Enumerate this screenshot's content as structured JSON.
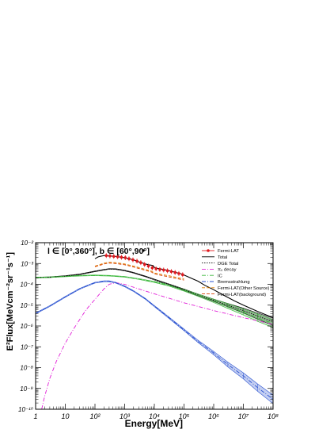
{
  "chart_data": {
    "type": "line",
    "title": "",
    "region_label": "l ∈ [0°,360°], b ∈ [60°,90°]",
    "xlabel": "Energy[MeV]",
    "ylabel": "E²Flux[MeVcm⁻²sr⁻¹s⁻¹]",
    "x_scale": "log",
    "y_scale": "log",
    "xlim": [
      1,
      100000000
    ],
    "ylim": [
      1e-10,
      0.01
    ],
    "x_ticks": [
      {
        "value": 1,
        "label": "1"
      },
      {
        "value": 10,
        "label": "10"
      },
      {
        "value": 100,
        "label": "10²"
      },
      {
        "value": 1000,
        "label": "10³"
      },
      {
        "value": 10000,
        "label": "10⁴"
      },
      {
        "value": 100000,
        "label": "10⁵"
      },
      {
        "value": 1000000,
        "label": "10⁶"
      },
      {
        "value": 10000000,
        "label": "10⁷"
      },
      {
        "value": 100000000,
        "label": "10⁸"
      }
    ],
    "y_ticks": [
      {
        "value": 1e-10,
        "label": "10⁻¹⁰"
      },
      {
        "value": 1e-09,
        "label": "10⁻⁹"
      },
      {
        "value": 1e-08,
        "label": "10⁻⁸"
      },
      {
        "value": 1e-07,
        "label": "10⁻⁷"
      },
      {
        "value": 1e-06,
        "label": "10⁻⁶"
      },
      {
        "value": 1e-05,
        "label": "10⁻⁵"
      },
      {
        "value": 0.0001,
        "label": "10⁻⁴"
      },
      {
        "value": 0.001,
        "label": "10⁻³"
      },
      {
        "value": 0.01,
        "label": "10⁻²"
      }
    ],
    "grid": false,
    "legend_position": "top-right",
    "fermi_points": {
      "name": "Fermi-LAT",
      "color": "#e0191e",
      "x": [
        240,
        320,
        430,
        580,
        780,
        1050,
        1400,
        1900,
        2600,
        3500,
        4700,
        6300,
        8500,
        11400,
        15300,
        20600,
        27700,
        37300,
        50000,
        67000,
        90000
      ],
      "y": [
        0.0024,
        0.0023,
        0.0022,
        0.0021,
        0.002,
        0.0019,
        0.0017,
        0.0015,
        0.0013,
        0.0011,
        0.0009,
        0.00075,
        0.00062,
        0.00056,
        0.00052,
        0.00049,
        0.00045,
        0.00041,
        0.00037,
        0.00033,
        0.00029
      ]
    },
    "series": [
      {
        "name": "Total",
        "color": "#000000",
        "style": "solid",
        "x": [
          100,
          130,
          200,
          300,
          500,
          1000,
          2000,
          3000,
          5000,
          7000,
          9000,
          10000,
          13000,
          20000,
          30000,
          50000,
          80000,
          100000,
          200000,
          300000,
          500000,
          1000000,
          2000000,
          5000000,
          10000000,
          30000000,
          100000000
        ],
        "y": [
          0.0017,
          0.0021,
          0.0024,
          0.0023,
          0.0022,
          0.0019,
          0.0015,
          0.0012,
          0.00095,
          0.00085,
          0.0008,
          0.00065,
          0.00058,
          0.00052,
          0.00046,
          0.00038,
          0.00032,
          0.00028,
          0.00018,
          0.00014,
          9e-05,
          5.5e-05,
          3.2e-05,
          1.6e-05,
          1e-05,
          5e-06,
          2.5e-06
        ]
      },
      {
        "name": "DGE Total",
        "color": "#000000",
        "style": "dotted",
        "band": true,
        "x": [
          1,
          3,
          10,
          30,
          100,
          200,
          300,
          500,
          1000,
          2000,
          3000,
          5000,
          10000,
          30000,
          100000,
          300000,
          1000000,
          3000000,
          10000000,
          30000000,
          100000000
        ],
        "y": [
          0.00021,
          0.00022,
          0.00025,
          0.0003,
          0.00042,
          0.0005,
          0.00055,
          0.00054,
          0.00046,
          0.00036,
          0.0003,
          0.00024,
          0.00017,
          0.0001,
          5.5e-05,
          3.1e-05,
          1.7e-05,
          1e-05,
          5.5e-06,
          3e-06,
          1.6e-06
        ],
        "band_frac": [
          0.04,
          0.04,
          0.04,
          0.04,
          0.04,
          0.04,
          0.04,
          0.04,
          0.04,
          0.04,
          0.04,
          0.04,
          0.05,
          0.06,
          0.08,
          0.1,
          0.14,
          0.2,
          0.3,
          0.4,
          0.5
        ]
      },
      {
        "name": "π₀ decay",
        "color": "#e21ed8",
        "style": "dashdot",
        "x": [
          1.6,
          2,
          3,
          5,
          10,
          20,
          50,
          100,
          200,
          300,
          500,
          1000,
          3000,
          10000,
          100000,
          1000000,
          10000000,
          100000000
        ],
        "y": [
          1e-10,
          4e-10,
          3e-09,
          2e-08,
          1.5e-07,
          8e-07,
          6e-06,
          1.9e-05,
          6e-05,
          0.0001,
          0.00012,
          0.0001,
          6e-05,
          3.5e-05,
          1.3e-05,
          5.5e-06,
          2.5e-06,
          1.2e-06
        ]
      },
      {
        "name": "IC",
        "color": "#3cb83c",
        "style": "dashdot",
        "band": true,
        "x": [
          1,
          3,
          10,
          30,
          100,
          300,
          1000,
          3000,
          10000,
          30000,
          100000,
          300000,
          1000000,
          3000000,
          10000000,
          30000000,
          100000000
        ],
        "y": [
          0.00021,
          0.00022,
          0.00024,
          0.00026,
          0.00027,
          0.00026,
          0.00023,
          0.00018,
          0.00013,
          9e-05,
          5.2e-05,
          3e-05,
          1.6e-05,
          9e-06,
          4.7e-06,
          2.5e-06,
          1.3e-06
        ],
        "band_frac": [
          0.04,
          0.04,
          0.04,
          0.04,
          0.04,
          0.04,
          0.04,
          0.05,
          0.06,
          0.08,
          0.1,
          0.14,
          0.2,
          0.3,
          0.4,
          0.5,
          0.55
        ]
      },
      {
        "name": "Bremsstrahlung",
        "color": "#2a52d0",
        "style": "dashdot",
        "band": true,
        "x": [
          1,
          3,
          10,
          30,
          60,
          100,
          200,
          300,
          500,
          1000,
          2000,
          5000,
          10000,
          30000,
          100000,
          300000,
          1000000,
          3000000,
          10000000,
          30000000,
          100000000
        ],
        "y": [
          4e-06,
          9e-06,
          2.5e-05,
          6e-05,
          9e-05,
          0.00012,
          0.00014,
          0.00014,
          0.00012,
          8e-05,
          4.7e-05,
          2e-05,
          9e-06,
          2.6e-06,
          6.5e-07,
          1.8e-07,
          5e-08,
          1.4e-08,
          4e-09,
          1.1e-09,
          3e-10
        ],
        "band_frac": [
          0.05,
          0.05,
          0.05,
          0.05,
          0.05,
          0.05,
          0.05,
          0.05,
          0.05,
          0.05,
          0.05,
          0.05,
          0.06,
          0.08,
          0.1,
          0.14,
          0.2,
          0.3,
          0.4,
          0.5,
          0.6
        ]
      },
      {
        "name": "Fermi-LAT(Other Source)",
        "color": "#e07f00",
        "style": "dashed",
        "x": [
          100,
          150,
          200,
          300,
          500,
          1000,
          2000,
          5000,
          8000,
          10000,
          15000,
          30000,
          100000
        ],
        "y": [
          0.00075,
          0.0009,
          0.00105,
          0.00115,
          0.0011,
          0.00095,
          0.00075,
          0.00052,
          0.00043,
          0.00035,
          0.00031,
          0.00026,
          0.00018
        ]
      },
      {
        "name": "Fermi-LAT(background)",
        "color": "#d84000",
        "style": "dashed",
        "x": [
          100,
          150,
          200,
          300,
          500,
          1000,
          2000,
          5000,
          8000,
          10000,
          15000,
          30000,
          100000
        ],
        "y": [
          0.0007,
          0.00083,
          0.00095,
          0.00105,
          0.001,
          0.00087,
          0.00068,
          0.00047,
          0.00039,
          0.00032,
          0.00028,
          0.00023,
          0.00016
        ]
      }
    ]
  }
}
